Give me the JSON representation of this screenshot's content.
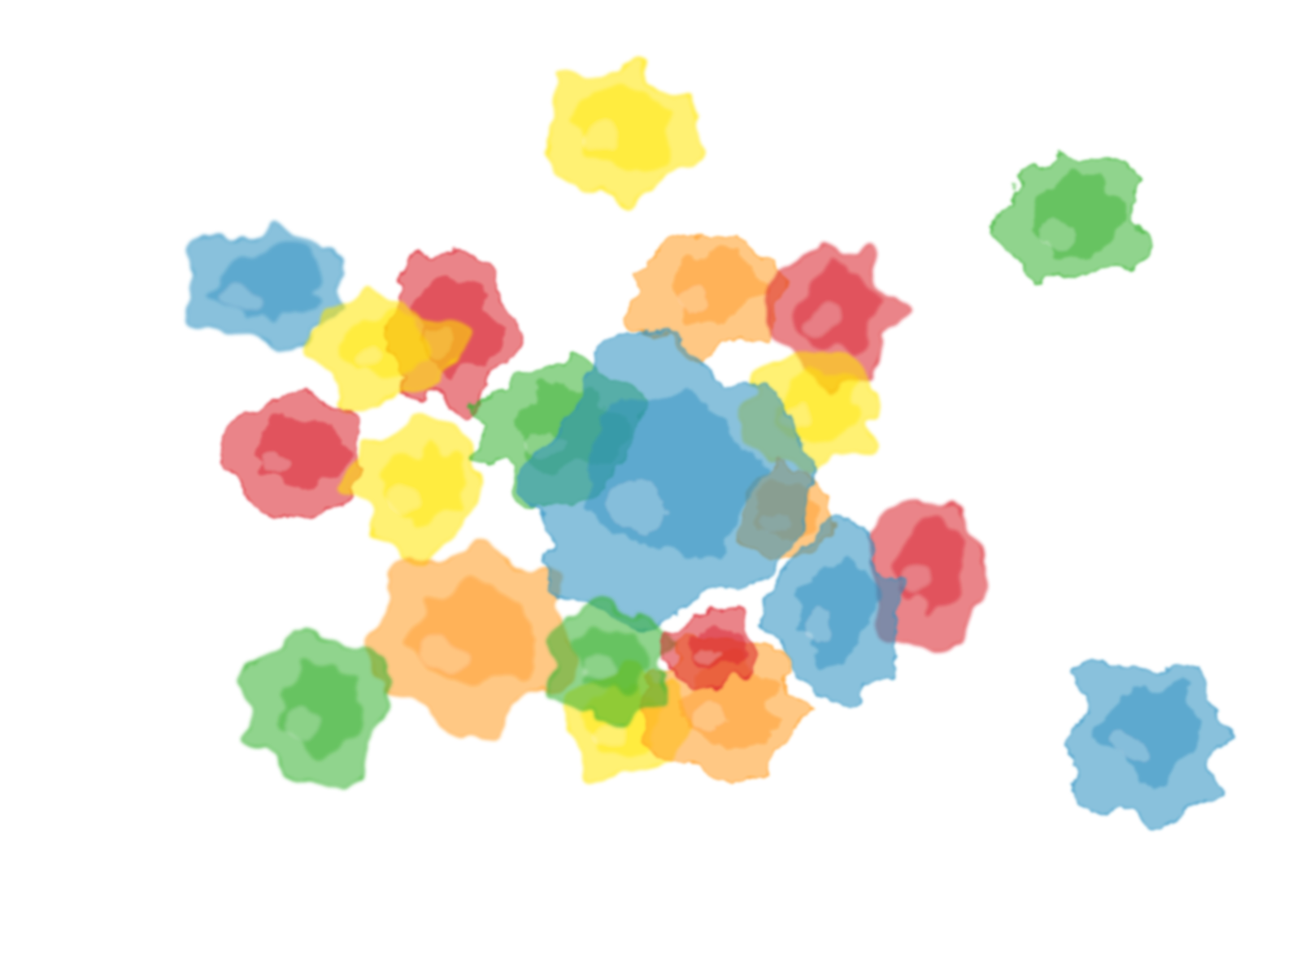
{
  "scene": {
    "kind": "watercolor-splash-composition",
    "background": "#ffffff",
    "palette": {
      "red": "#d81e28",
      "orange": "#ff9a1f",
      "yellow": "#ffe600",
      "green": "#35b02e",
      "blue": "#2a8ec0"
    },
    "blobs": [
      {
        "name": "yellow-splash-top",
        "color": "yellow"
      },
      {
        "name": "green-splash-top-right",
        "color": "green"
      },
      {
        "name": "blue-splash-top-left",
        "color": "blue"
      },
      {
        "name": "red-splash-upper-left",
        "color": "red"
      },
      {
        "name": "yellow-splash-upper-left",
        "color": "yellow"
      },
      {
        "name": "red-splash-left",
        "color": "red"
      },
      {
        "name": "yellow-splash-left",
        "color": "yellow"
      },
      {
        "name": "orange-splash-upper-center",
        "color": "orange"
      },
      {
        "name": "red-splash-upper-right",
        "color": "red"
      },
      {
        "name": "green-splash-center",
        "color": "green"
      },
      {
        "name": "yellow-splash-right",
        "color": "yellow"
      },
      {
        "name": "orange-splash-right",
        "color": "orange"
      },
      {
        "name": "orange-splash-lower-left",
        "color": "orange"
      },
      {
        "name": "blue-splash-center",
        "color": "blue"
      },
      {
        "name": "red-splash-right",
        "color": "red"
      },
      {
        "name": "blue-splash-right",
        "color": "blue"
      },
      {
        "name": "yellow-splash-bottom",
        "color": "yellow"
      },
      {
        "name": "orange-splash-bottom",
        "color": "orange"
      },
      {
        "name": "green-splash-bottom-center",
        "color": "green"
      },
      {
        "name": "red-splash-bottom-center",
        "color": "red"
      },
      {
        "name": "green-splash-bottom-left",
        "color": "green"
      },
      {
        "name": "blue-splash-bottom-right",
        "color": "blue"
      }
    ]
  }
}
